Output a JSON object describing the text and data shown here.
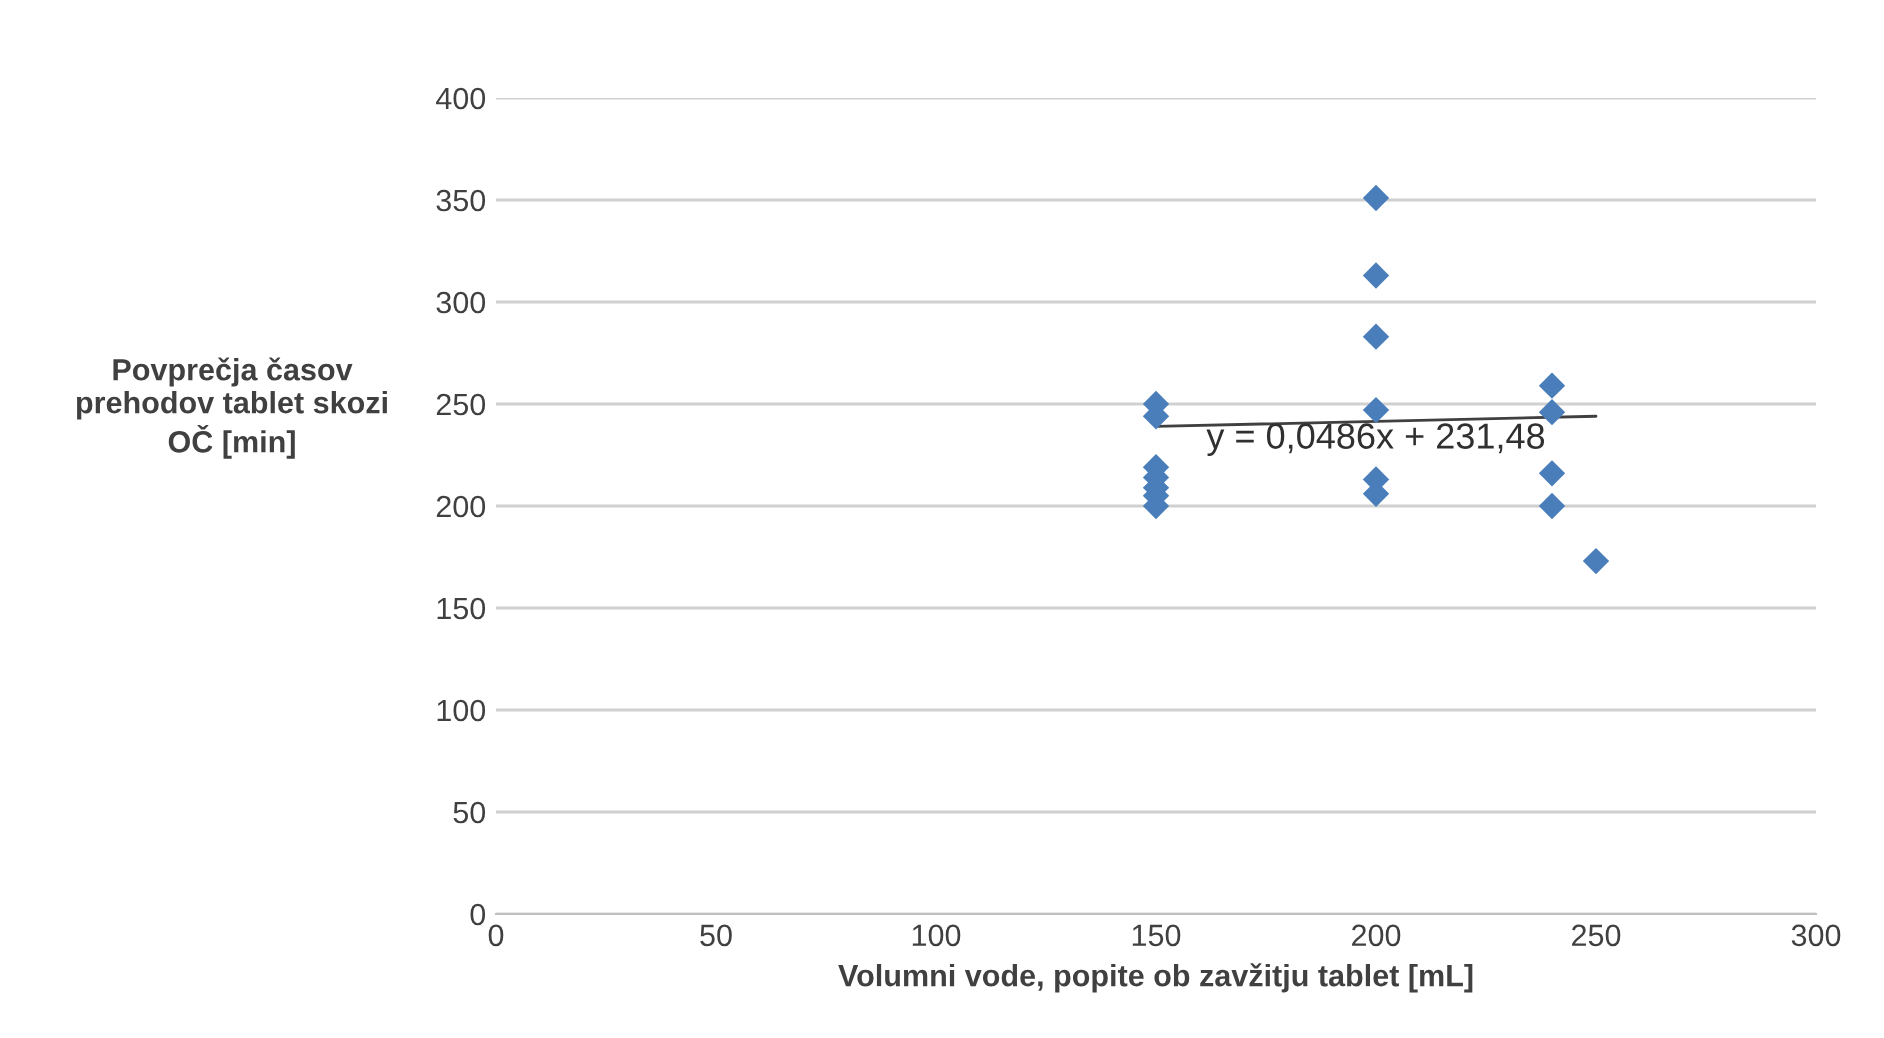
{
  "chart_data": {
    "type": "scatter",
    "xlabel": "Volumni vode, popite ob zavžitju tablet [mL]",
    "ylabel": "Povprečja časov\nprehodov tablet skozi\nOČ [min]",
    "xlim": [
      0,
      300
    ],
    "xticks": [
      0,
      50,
      100,
      150,
      200,
      250,
      300
    ],
    "ylim": [
      0,
      400
    ],
    "yticks": [
      0,
      50,
      100,
      150,
      200,
      250,
      300,
      350,
      400
    ],
    "grid": "y",
    "series": [
      {
        "marker": "diamond",
        "color": "#4a7ebb",
        "x": [
          150,
          150,
          150,
          150,
          150,
          150,
          150,
          200,
          200,
          200,
          200,
          200,
          200,
          240,
          240,
          240,
          240,
          250
        ],
        "values": [
          250,
          244,
          219,
          214,
          209,
          205,
          200,
          351,
          313,
          283,
          247,
          213,
          206,
          259,
          246,
          216,
          200,
          173
        ]
      },
      {
        "type": "line",
        "color": "#404040",
        "x": [
          150,
          250
        ],
        "values": [
          239,
          244
        ]
      }
    ],
    "annotations": [
      {
        "text": "y = 0,0486x + 231,48",
        "x": 200,
        "y": 241
      }
    ]
  }
}
